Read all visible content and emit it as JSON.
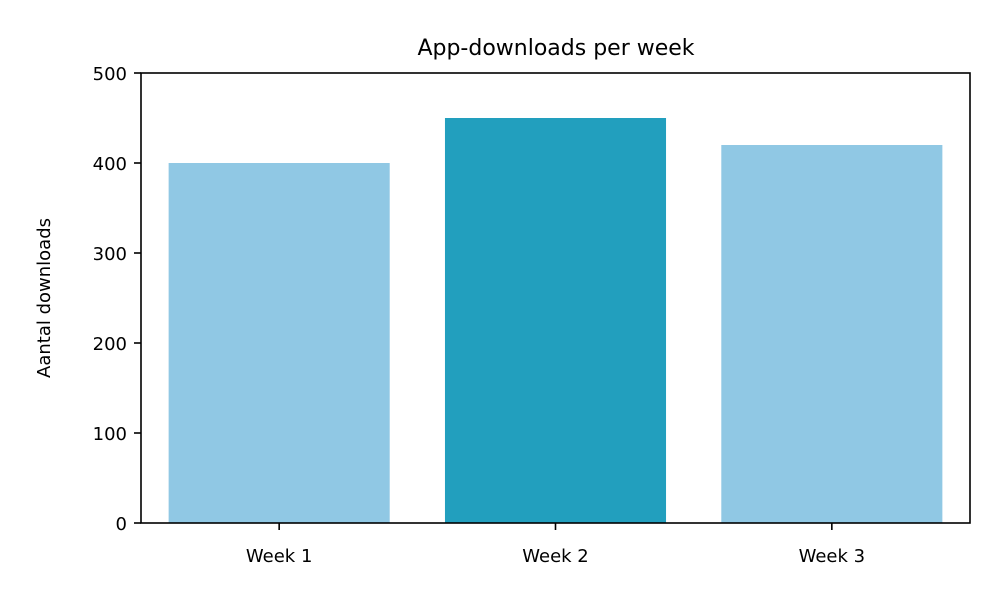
{
  "chart_data": {
    "type": "bar",
    "title": "App-downloads per week",
    "xlabel": "",
    "ylabel": "Aantal downloads",
    "categories": [
      "Week 1",
      "Week 2",
      "Week 3"
    ],
    "values": [
      400,
      450,
      420
    ],
    "bar_colors": [
      "#90c8e4",
      "#229fbe",
      "#90c8e4"
    ],
    "ylim": [
      0,
      500
    ],
    "yticks": [
      0,
      100,
      200,
      300,
      400,
      500
    ],
    "grid": false,
    "legend": "none"
  }
}
